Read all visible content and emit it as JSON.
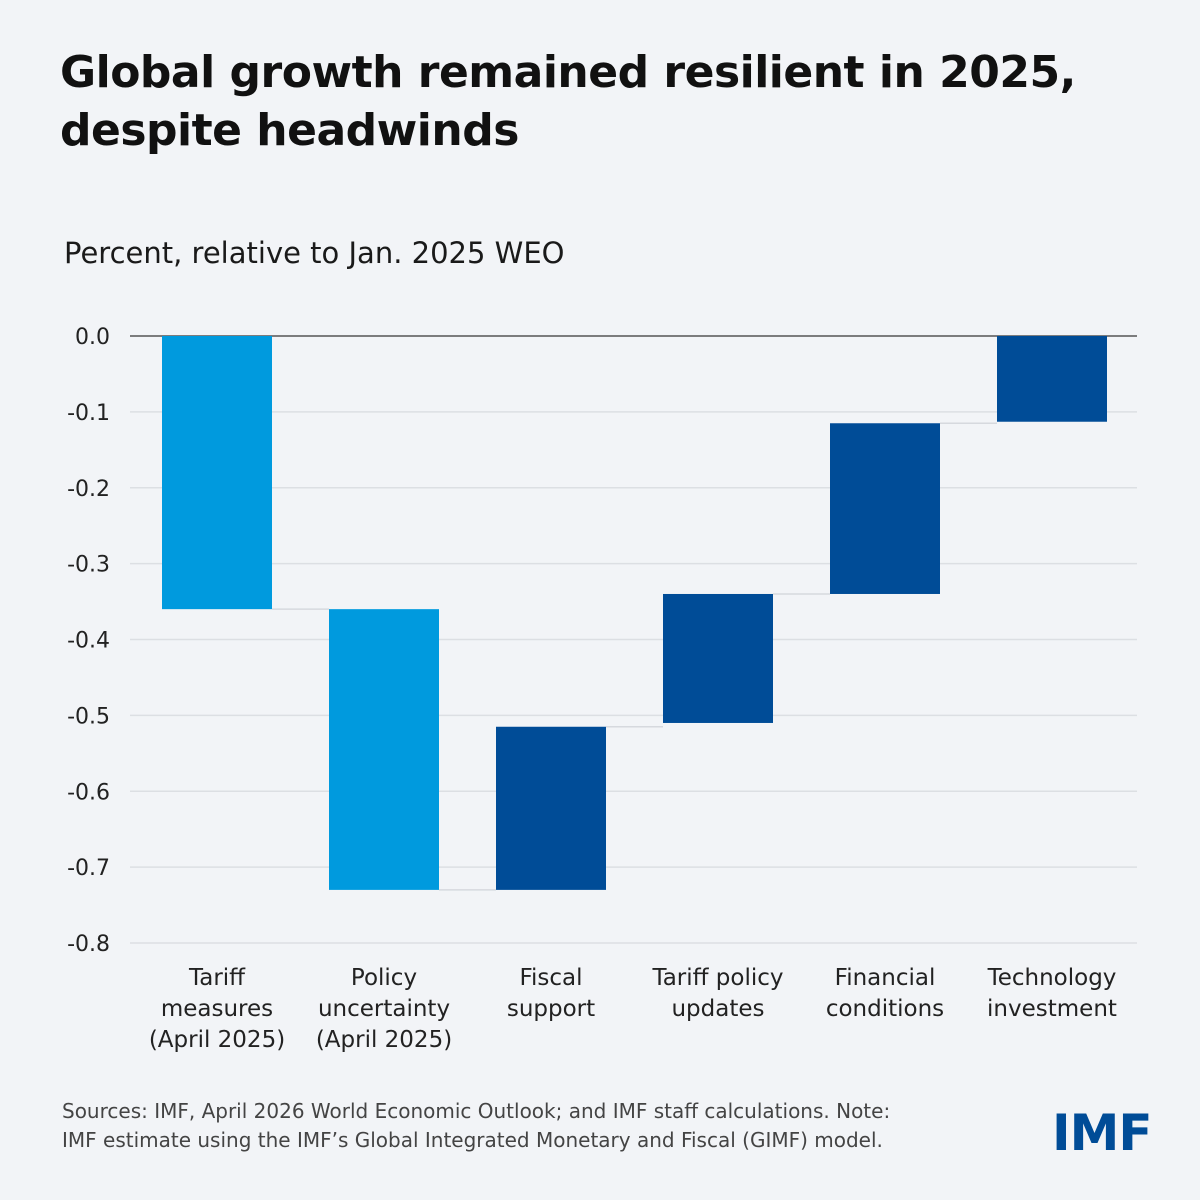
{
  "header": {
    "title": "Global growth remained resilient in 2025, despite headwinds",
    "subtitle": "Percent, relative to Jan. 2025 WEO"
  },
  "chart_data": {
    "type": "waterfall",
    "title": "Global growth remained resilient in 2025, despite headwinds",
    "ylabel": "Percent, relative to Jan. 2025 WEO",
    "ylim": [
      -0.8,
      0.0
    ],
    "yticks": [
      "0.0",
      "-0.1",
      "-0.2",
      "-0.3",
      "-0.4",
      "-0.5",
      "-0.6",
      "-0.7",
      "-0.8"
    ],
    "grid": true,
    "categories": [
      [
        "Tariff",
        "measures",
        "(April 2025)"
      ],
      [
        "Policy",
        "uncertainty",
        "(April 2025)"
      ],
      [
        "Fiscal",
        "support"
      ],
      [
        "Tariff policy",
        "updates"
      ],
      [
        "Financial",
        "conditions"
      ],
      [
        "Technology",
        "investment"
      ]
    ],
    "bars": [
      {
        "start": 0.0,
        "end": -0.36,
        "change": -0.36,
        "color": "#009ADE"
      },
      {
        "start": -0.36,
        "end": -0.73,
        "change": -0.37,
        "color": "#009ADE"
      },
      {
        "start": -0.73,
        "end": -0.515,
        "change": 0.215,
        "color": "#004C97"
      },
      {
        "start": -0.51,
        "end": -0.34,
        "change": 0.17,
        "color": "#004C97"
      },
      {
        "start": -0.34,
        "end": -0.115,
        "change": 0.225,
        "color": "#004C97"
      },
      {
        "start": -0.113,
        "end": 0.0,
        "change": 0.113,
        "color": "#004C97"
      }
    ]
  },
  "footer": {
    "note_line1": "Sources: IMF, April 2026 World Economic Outlook; and IMF staff calculations. Note:",
    "note_line2": "IMF estimate using the IMF’s Global Integrated Monetary and Fiscal (GIMF) model.",
    "logo": "IMF"
  },
  "colors": {
    "background": "#F2F4F7",
    "negative": "#009ADE",
    "positive": "#004C97"
  }
}
